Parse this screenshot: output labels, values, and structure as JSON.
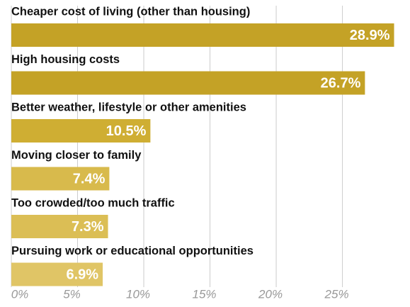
{
  "chart_data": {
    "type": "hbar",
    "categories": [
      "Cheaper cost of living (other than housing)",
      "High housing costs",
      "Better weather, lifestyle or other amenities",
      "Moving closer to family",
      "Too crowded/too much traffic",
      "Pursuing work or educational opportunities"
    ],
    "values": [
      28.9,
      26.7,
      10.5,
      7.4,
      7.3,
      6.9
    ],
    "value_labels": [
      "28.9%",
      "26.7%",
      "10.5%",
      "7.4%",
      "7.3%",
      "6.9%"
    ],
    "colors": [
      "#c4a226",
      "#c4a226",
      "#cfae33",
      "#d8ba4c",
      "#dbbe55",
      "#e0c566"
    ],
    "xlim": [
      0,
      29.3
    ],
    "xticks": [
      {
        "value": 0,
        "label": "0%"
      },
      {
        "value": 5,
        "label": "5%"
      },
      {
        "value": 10,
        "label": "10%"
      },
      {
        "value": 15,
        "label": "15%"
      },
      {
        "value": 20,
        "label": "20%"
      },
      {
        "value": 25,
        "label": "25%"
      }
    ],
    "grid": true
  }
}
